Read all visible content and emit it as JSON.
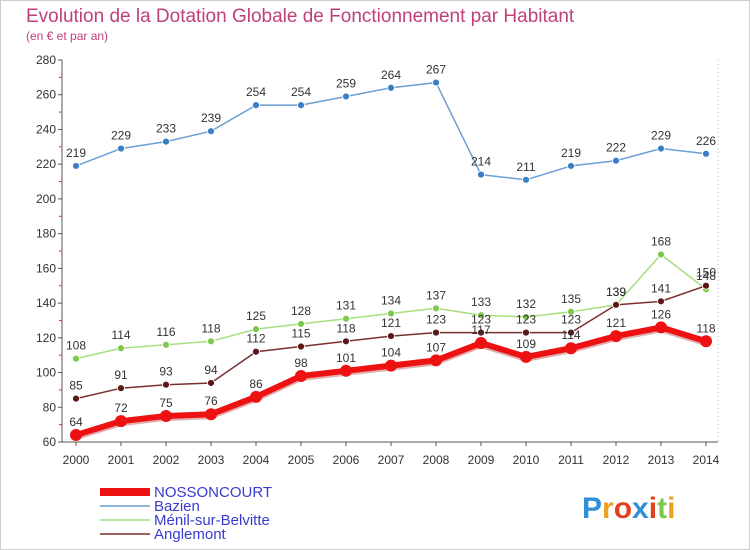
{
  "chart_data": {
    "type": "line",
    "title": "Evolution de la Dotation Globale de Fonctionnement par Habitant",
    "subtitle": "(en € et par an)",
    "categories": [
      "2000",
      "2001",
      "2002",
      "2003",
      "2004",
      "2005",
      "2006",
      "2007",
      "2008",
      "2009",
      "2010",
      "2011",
      "2012",
      "2013",
      "2014"
    ],
    "ylim": [
      60,
      280
    ],
    "yticks": [
      60,
      80,
      100,
      120,
      140,
      160,
      180,
      200,
      220,
      240,
      260,
      280
    ],
    "grid": false,
    "legend_position": "bottom-left",
    "series": [
      {
        "name": "Bazien",
        "color": "#6a9fd4",
        "marker": "#3a7fc4",
        "values": [
          219,
          229,
          233,
          239,
          254,
          254,
          259,
          264,
          267,
          214,
          211,
          219,
          222,
          229,
          226
        ]
      },
      {
        "name": "Ménil-sur-Belvitte",
        "color": "#a6de7e",
        "marker": "#7cc94d",
        "values": [
          108,
          114,
          116,
          118,
          125,
          128,
          131,
          134,
          137,
          133,
          132,
          135,
          139,
          168,
          148
        ]
      },
      {
        "name": "Anglemont",
        "color": "#7a2f2f",
        "marker": "#5a1818",
        "values": [
          85,
          91,
          93,
          94,
          112,
          115,
          118,
          121,
          123,
          123,
          123,
          123,
          139,
          141,
          150
        ]
      },
      {
        "name": "NOSSONCOURT",
        "color": "#ee1111",
        "marker": "#ee1111",
        "values": [
          64,
          72,
          75,
          76,
          86,
          98,
          101,
          104,
          107,
          117,
          109,
          114,
          121,
          126,
          118
        ]
      }
    ],
    "point_labels": {
      "Bazien": [
        "219",
        "229",
        "233",
        "239",
        "254",
        "254",
        "259",
        "264",
        "267",
        "214",
        "211",
        "219",
        "222",
        "229",
        "226"
      ],
      "Ménil-sur-Belvitte": [
        "108",
        "114",
        "116",
        "118",
        "125",
        "128",
        "131",
        "134",
        "137",
        "133",
        "132",
        "135",
        "139",
        "168",
        "148"
      ],
      "Anglemont": [
        "85",
        "91",
        "93",
        "94",
        "112",
        "115",
        "118",
        "121",
        "123",
        "123",
        "123",
        "123",
        "139",
        "141",
        "150"
      ],
      "NOSSONCOURT": [
        "64",
        "72",
        "75",
        "76",
        "86",
        "98",
        "101",
        "104",
        "107",
        "117",
        "109",
        "114",
        "121",
        "126",
        "118"
      ]
    },
    "legend_order": [
      "NOSSONCOURT",
      "Bazien",
      "Ménil-sur-Belvitte",
      "Anglemont"
    ]
  },
  "logo": {
    "text": "Proxiti",
    "letters": [
      "P",
      "r",
      "o",
      "x",
      "i",
      "t",
      "i"
    ],
    "colors": [
      "#2f8fd8",
      "#f0a020",
      "#e04020",
      "#2f8fd8",
      "#e04020",
      "#7cc94d",
      "#f0a020"
    ]
  }
}
